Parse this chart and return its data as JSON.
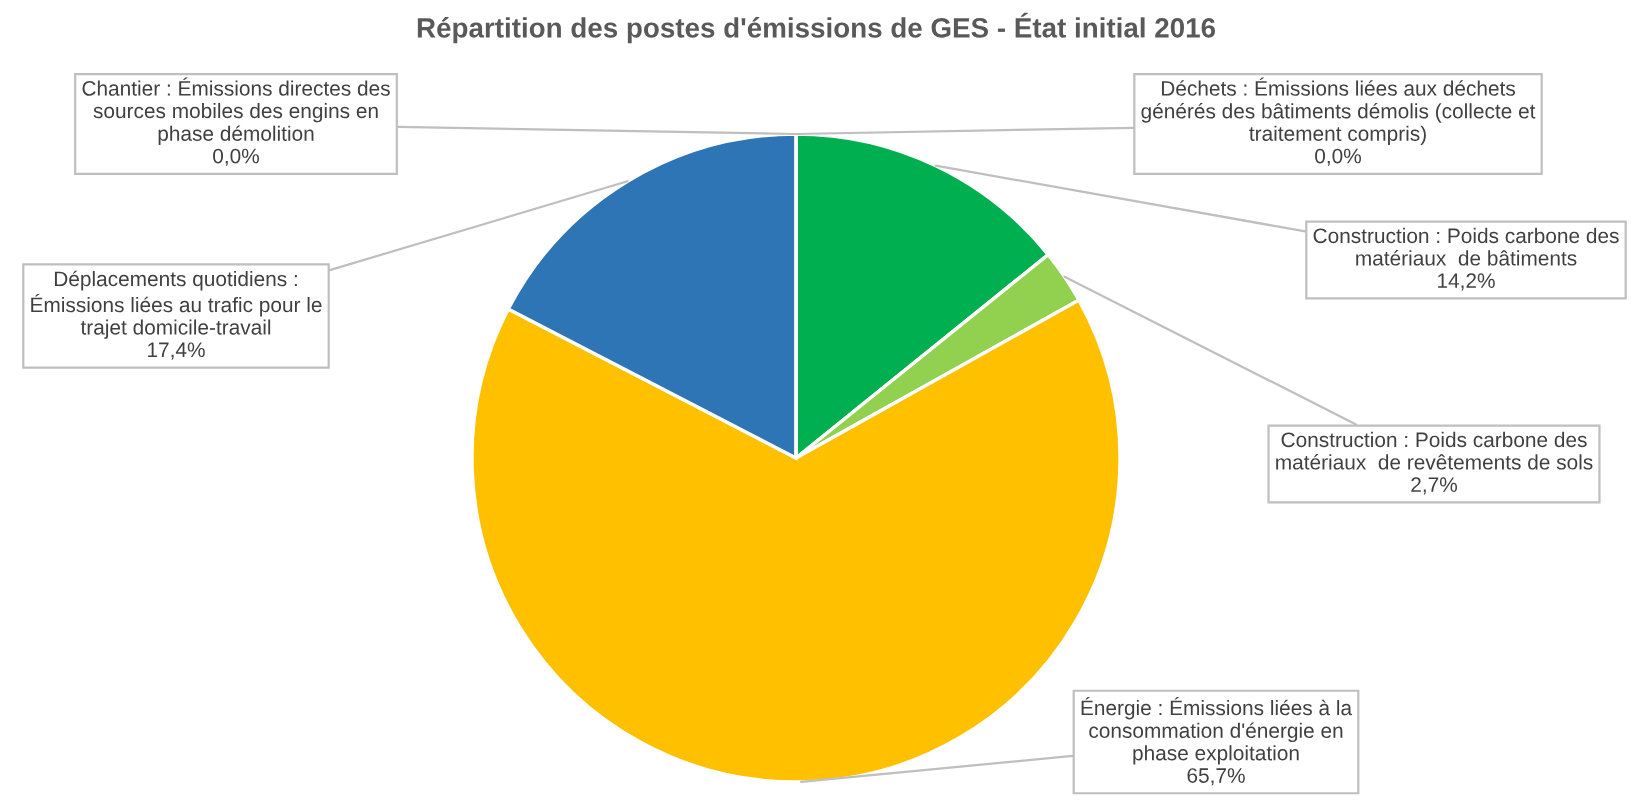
{
  "chart_data": {
    "type": "pie",
    "title": "Répartition des postes d'émissions de GES - État initial 2016",
    "categories": [
      "Déchets : Émissions liées aux déchets\ngénérés des bâtiments démolis (collecte et\ntraitement compris)",
      "Construction : Poids carbone des\nmatériaux  de bâtiments",
      "Construction : Poids carbone des\nmatériaux  de revêtements de sols",
      "Énergie : Émissions liées à la\nconsommation d'énergie en\nphase exploitation",
      "Déplacements quotidiens :\nÉmissions liées au trafic pour le\ntrajet domicile-travail",
      "Chantier : Émissions directes des\nsources mobiles des engins en\nphase démolition"
    ],
    "values": [
      0.0,
      14.2,
      2.7,
      65.7,
      17.4,
      0.0
    ],
    "value_labels": [
      "0,0%",
      "14,2%",
      "2,7%",
      "65,7%",
      "17,4%",
      "0,0%"
    ],
    "colors": [
      "#7f7f7f",
      "#00b050",
      "#92d050",
      "#ffc000",
      "#2e75b6",
      "#a5a5a5"
    ]
  }
}
